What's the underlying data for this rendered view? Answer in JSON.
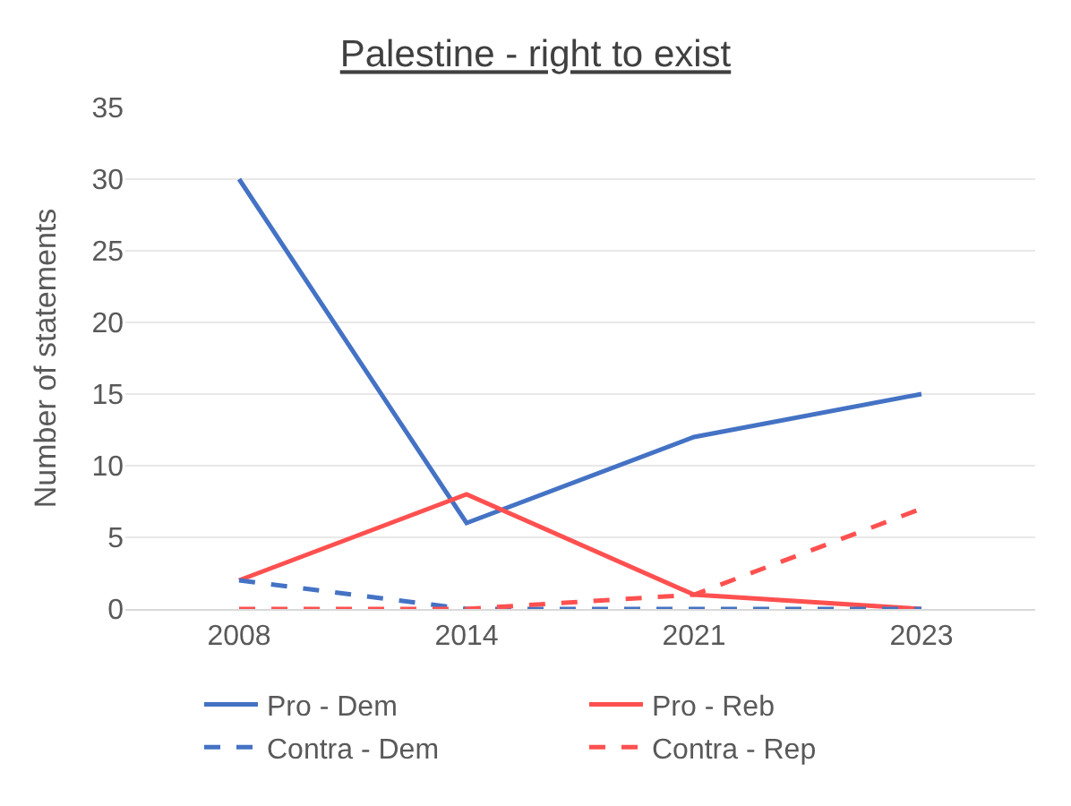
{
  "chart_data": {
    "type": "line",
    "title": "Palestine - right to exist",
    "ylabel": "Number of statements",
    "categories": [
      "2008",
      "2014",
      "2021",
      "2023"
    ],
    "series": [
      {
        "name": "Pro - Dem",
        "color": "#4472c4",
        "values": [
          30,
          6,
          12,
          15
        ],
        "line_style": "solid"
      },
      {
        "name": "Pro - Reb",
        "color": "#ff5050",
        "values": [
          2,
          8,
          1,
          0
        ],
        "line_style": "solid"
      },
      {
        "name": "Contra - Dem",
        "color": "#4472c4",
        "values": [
          2,
          0,
          0,
          0
        ],
        "line_style": "dashed"
      },
      {
        "name": "Contra - Rep",
        "color": "#ff5050",
        "values": [
          0,
          0,
          1,
          7
        ],
        "line_style": "dashed"
      }
    ],
    "ylim": [
      0,
      35
    ],
    "yticks": [
      0,
      5,
      10,
      15,
      20,
      25,
      30,
      35
    ],
    "grid": "y",
    "legend": "bottom",
    "marker": "none"
  }
}
